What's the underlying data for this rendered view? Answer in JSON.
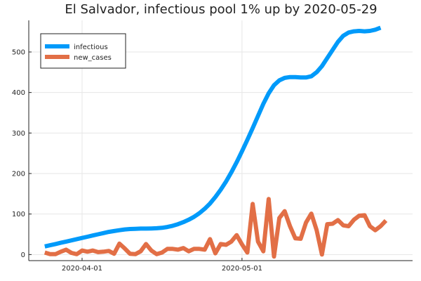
{
  "chart_data": {
    "type": "line",
    "title": "El Salvador, infectious pool 1% up by 2020-05-29",
    "xlabel": "",
    "ylabel": "",
    "x_start": "2020-03-25",
    "x_range": [
      "2020-03-22",
      "2020-06-02"
    ],
    "ylim": [
      -15,
      578
    ],
    "x_ticks": [
      {
        "date": "2020-04-01",
        "label": "2020-04-01"
      },
      {
        "date": "2020-05-01",
        "label": "2020-05-01"
      }
    ],
    "y_ticks": [
      0,
      100,
      200,
      300,
      400,
      500
    ],
    "grid": true,
    "legend_position": "top-left",
    "series": [
      {
        "name": "infectious",
        "color": "#009AFA",
        "values": [
          20,
          23,
          26,
          29,
          32,
          35,
          38,
          41,
          44,
          47,
          50,
          53,
          56,
          58,
          60,
          62,
          63,
          63.5,
          64,
          64,
          64.5,
          65,
          66,
          68,
          71,
          75,
          80,
          86,
          93,
          102,
          113,
          126,
          142,
          160,
          180,
          203,
          228,
          255,
          283,
          312,
          342,
          372,
          398,
          418,
          430,
          436,
          438,
          438,
          437,
          437,
          440,
          450,
          465,
          485,
          505,
          525,
          540,
          548,
          551,
          552,
          551,
          552,
          555,
          560
        ]
      },
      {
        "name": "new_cases",
        "color": "#E26F46",
        "values": [
          5,
          1,
          1,
          7,
          12,
          4,
          1,
          10,
          7,
          10,
          6,
          7,
          9,
          2,
          27,
          15,
          2,
          1,
          8,
          26,
          10,
          1,
          5,
          14,
          14,
          12,
          16,
          8,
          14,
          14,
          12,
          38,
          3,
          26,
          24,
          32,
          48,
          25,
          5,
          125,
          32,
          8,
          137,
          -5,
          90,
          107,
          70,
          40,
          39,
          79,
          101,
          60,
          0,
          75,
          76,
          85,
          72,
          70,
          86,
          96,
          97,
          70,
          60,
          70,
          84
        ]
      }
    ]
  }
}
